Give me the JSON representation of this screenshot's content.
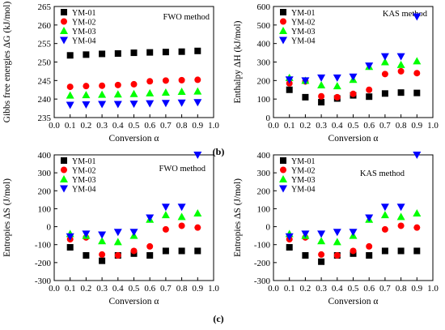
{
  "panel_tags": [
    "(b)",
    "(c)"
  ],
  "chart_data": [
    {
      "type": "scatter",
      "title": "",
      "annotation": "FWO method",
      "legend_position": "top-left",
      "xlabel": "Conversion α",
      "ylabel": "Gibbs free energies ΔG (kJ/mol)",
      "xlim": [
        0.0,
        1.0
      ],
      "ylim": [
        235,
        265
      ],
      "xticks": [
        0.0,
        0.1,
        0.2,
        0.3,
        0.4,
        0.5,
        0.6,
        0.7,
        0.8,
        0.9,
        1.0
      ],
      "yticks": [
        235,
        240,
        245,
        250,
        255,
        260,
        265
      ],
      "x": [
        0.1,
        0.2,
        0.3,
        0.4,
        0.5,
        0.6,
        0.7,
        0.8,
        0.9
      ],
      "series": [
        {
          "name": "YM-01",
          "marker": "square",
          "color": "#000000",
          "values": [
            251.8,
            252.0,
            252.2,
            252.3,
            252.5,
            252.6,
            252.7,
            252.8,
            253.0
          ]
        },
        {
          "name": "YM-02",
          "marker": "circle",
          "color": "#ff0000",
          "values": [
            243.3,
            243.5,
            243.6,
            243.8,
            244.0,
            244.8,
            245.0,
            245.1,
            245.2
          ]
        },
        {
          "name": "YM-03",
          "marker": "triangle-up",
          "color": "#00ff00",
          "values": [
            241.0,
            241.1,
            241.2,
            241.3,
            241.4,
            241.6,
            241.8,
            242.0,
            242.1
          ]
        },
        {
          "name": "YM-04",
          "marker": "triangle-down",
          "color": "#0000ff",
          "values": [
            238.4,
            238.5,
            238.6,
            238.6,
            238.7,
            238.8,
            238.9,
            239.0,
            239.1
          ]
        }
      ]
    },
    {
      "type": "scatter",
      "title": "",
      "annotation": "KAS method",
      "legend_position": "top-left",
      "xlabel": "Conversion α",
      "ylabel": "Enthalpy ΔH (kJ/mol)",
      "xlim": [
        0.0,
        1.0
      ],
      "ylim": [
        0,
        600
      ],
      "xticks": [
        0.0,
        0.1,
        0.2,
        0.3,
        0.4,
        0.5,
        0.6,
        0.7,
        0.8,
        0.9,
        1.0
      ],
      "yticks": [
        0,
        100,
        200,
        300,
        400,
        500,
        600
      ],
      "x": [
        0.1,
        0.2,
        0.3,
        0.4,
        0.5,
        0.6,
        0.7,
        0.8,
        0.9
      ],
      "series": [
        {
          "name": "YM-01",
          "marker": "square",
          "color": "#000000",
          "values": [
            150,
            110,
            83,
            103,
            120,
            113,
            130,
            135,
            133
          ]
        },
        {
          "name": "YM-02",
          "marker": "circle",
          "color": "#ff0000",
          "values": [
            185,
            195,
            115,
            110,
            128,
            150,
            235,
            250,
            240
          ]
        },
        {
          "name": "YM-03",
          "marker": "triangle-up",
          "color": "#00ff00",
          "values": [
            215,
            200,
            175,
            170,
            205,
            275,
            300,
            285,
            305
          ]
        },
        {
          "name": "YM-04",
          "marker": "triangle-down",
          "color": "#0000ff",
          "values": [
            205,
            200,
            215,
            215,
            220,
            280,
            330,
            330,
            545
          ]
        }
      ]
    },
    {
      "type": "scatter",
      "title": "",
      "annotation": "FWO method",
      "legend_position": "top-left",
      "xlabel": "Conversion α",
      "ylabel": "Entropies ΔS (J/mol)",
      "xlim": [
        0.0,
        1.0
      ],
      "ylim": [
        -300,
        400
      ],
      "xticks": [
        0.0,
        0.1,
        0.2,
        0.3,
        0.4,
        0.5,
        0.6,
        0.7,
        0.8,
        0.9,
        1.0
      ],
      "yticks": [
        -300,
        -200,
        -100,
        0,
        100,
        200,
        300,
        400
      ],
      "x": [
        0.1,
        0.2,
        0.3,
        0.4,
        0.5,
        0.6,
        0.7,
        0.8,
        0.9
      ],
      "series": [
        {
          "name": "YM-01",
          "marker": "square",
          "color": "#000000",
          "values": [
            -115,
            -160,
            -190,
            -160,
            -150,
            -160,
            -135,
            -135,
            -135
          ]
        },
        {
          "name": "YM-02",
          "marker": "circle",
          "color": "#ff0000",
          "values": [
            -70,
            -60,
            -155,
            -160,
            -135,
            -110,
            -15,
            5,
            -5
          ]
        },
        {
          "name": "YM-03",
          "marker": "triangle-up",
          "color": "#00ff00",
          "values": [
            -40,
            -50,
            -80,
            -85,
            -50,
            40,
            65,
            55,
            75
          ]
        },
        {
          "name": "YM-04",
          "marker": "triangle-down",
          "color": "#0000ff",
          "values": [
            -55,
            -40,
            -45,
            -30,
            -30,
            50,
            110,
            110,
            400
          ]
        }
      ]
    },
    {
      "type": "scatter",
      "title": "",
      "annotation": "KAS method",
      "legend_position": "top-left",
      "xlabel": "Conversion α",
      "ylabel": "Entropies ΔS (J/mol)",
      "xlim": [
        0.0,
        1.0
      ],
      "ylim": [
        -300,
        400
      ],
      "xticks": [
        0.0,
        0.1,
        0.2,
        0.3,
        0.4,
        0.5,
        0.6,
        0.7,
        0.8,
        0.9,
        1.0
      ],
      "yticks": [
        -300,
        -200,
        -100,
        0,
        100,
        200,
        300,
        400
      ],
      "x": [
        0.1,
        0.2,
        0.3,
        0.4,
        0.5,
        0.6,
        0.7,
        0.8,
        0.9
      ],
      "series": [
        {
          "name": "YM-01",
          "marker": "square",
          "color": "#000000",
          "values": [
            -115,
            -160,
            -195,
            -160,
            -150,
            -160,
            -135,
            -135,
            -135
          ]
        },
        {
          "name": "YM-02",
          "marker": "circle",
          "color": "#ff0000",
          "values": [
            -70,
            -60,
            -155,
            -160,
            -135,
            -110,
            -15,
            5,
            -5
          ]
        },
        {
          "name": "YM-03",
          "marker": "triangle-up",
          "color": "#00ff00",
          "values": [
            -40,
            -50,
            -80,
            -85,
            -50,
            40,
            65,
            55,
            75
          ]
        },
        {
          "name": "YM-04",
          "marker": "triangle-down",
          "color": "#0000ff",
          "values": [
            -55,
            -40,
            -40,
            -30,
            -30,
            50,
            110,
            110,
            400
          ]
        }
      ]
    }
  ]
}
